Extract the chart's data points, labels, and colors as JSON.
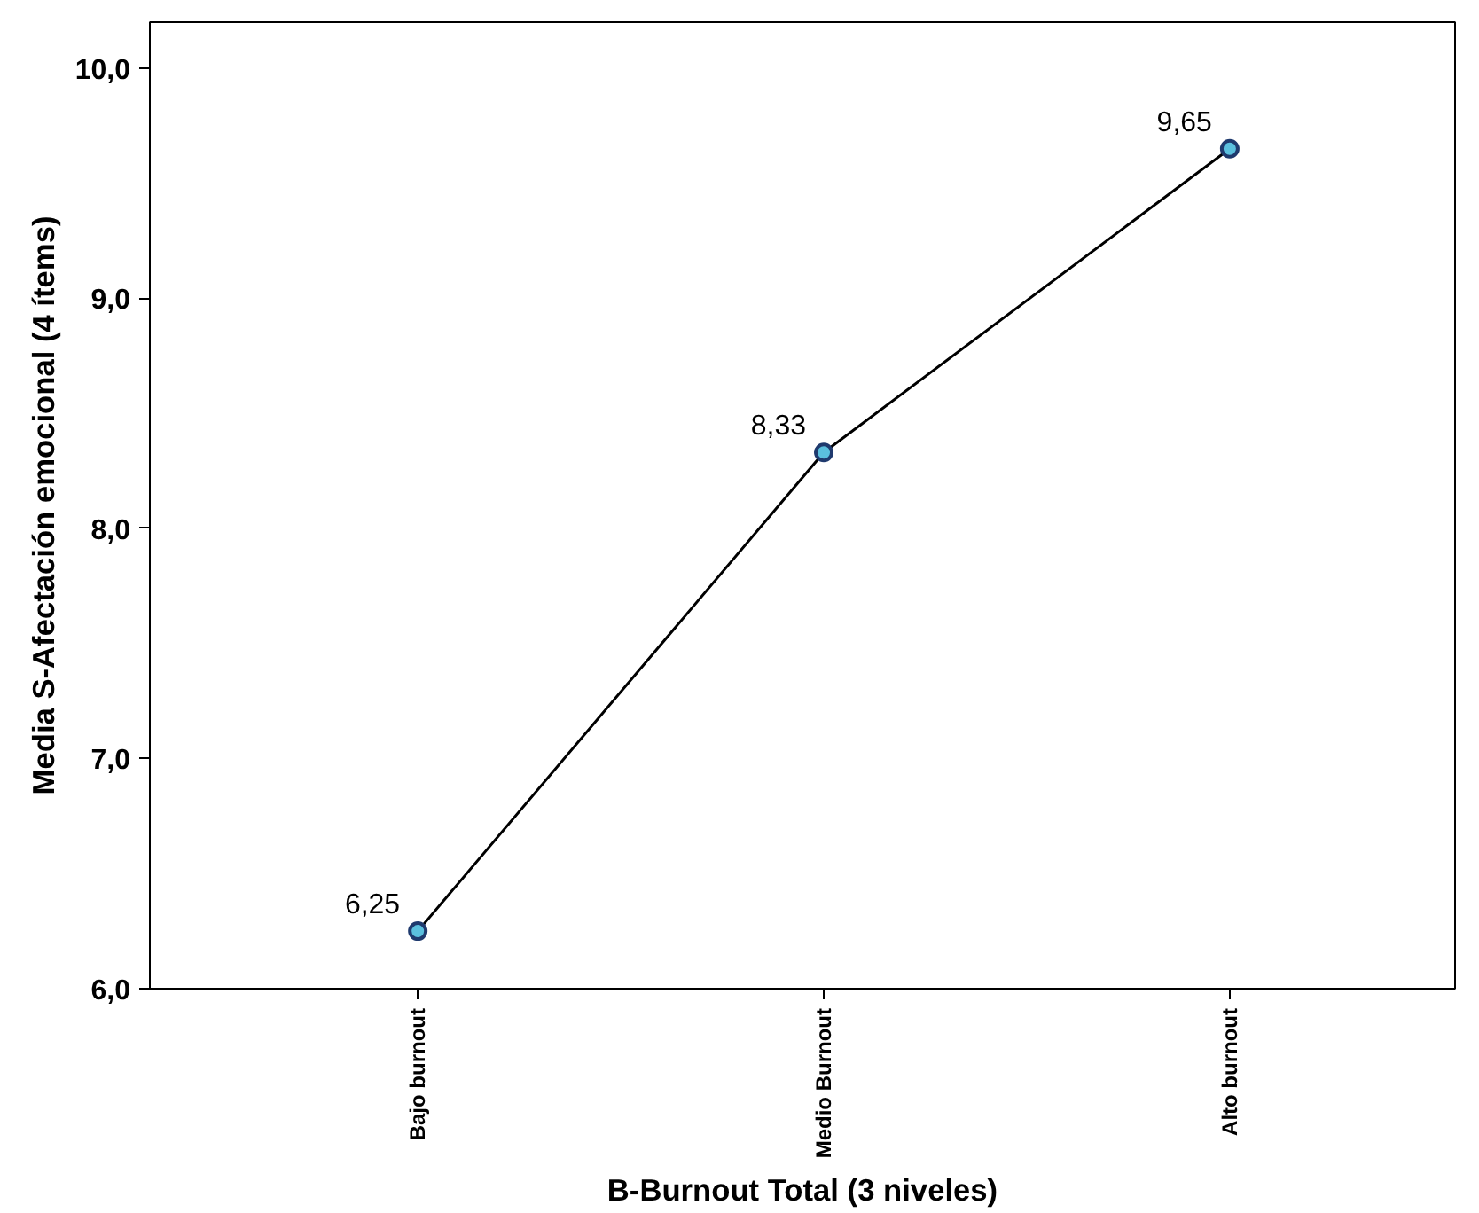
{
  "chart_data": {
    "type": "line",
    "xlabel": "B-Burnout Total (3 niveles)",
    "ylabel": "Media S-Afectación emocional (4 ítems)",
    "categories": [
      "Bajo burnout",
      "Medio Burnout",
      "Alto burnout"
    ],
    "series": [
      {
        "color": "#000000",
        "values": [
          6.25,
          8.33,
          9.65
        ],
        "value_labels": [
          "6,25",
          "8,33",
          "9,65"
        ]
      }
    ],
    "ylim": [
      6.0,
      10.2
    ],
    "yticks": [
      {
        "value": 6,
        "label": "6,0"
      },
      {
        "value": 7,
        "label": "7,0"
      },
      {
        "value": 8,
        "label": "8,0"
      },
      {
        "value": 9,
        "label": "9,0"
      },
      {
        "value": 10,
        "label": "10,0"
      }
    ],
    "marker": "circle",
    "grid": false
  }
}
